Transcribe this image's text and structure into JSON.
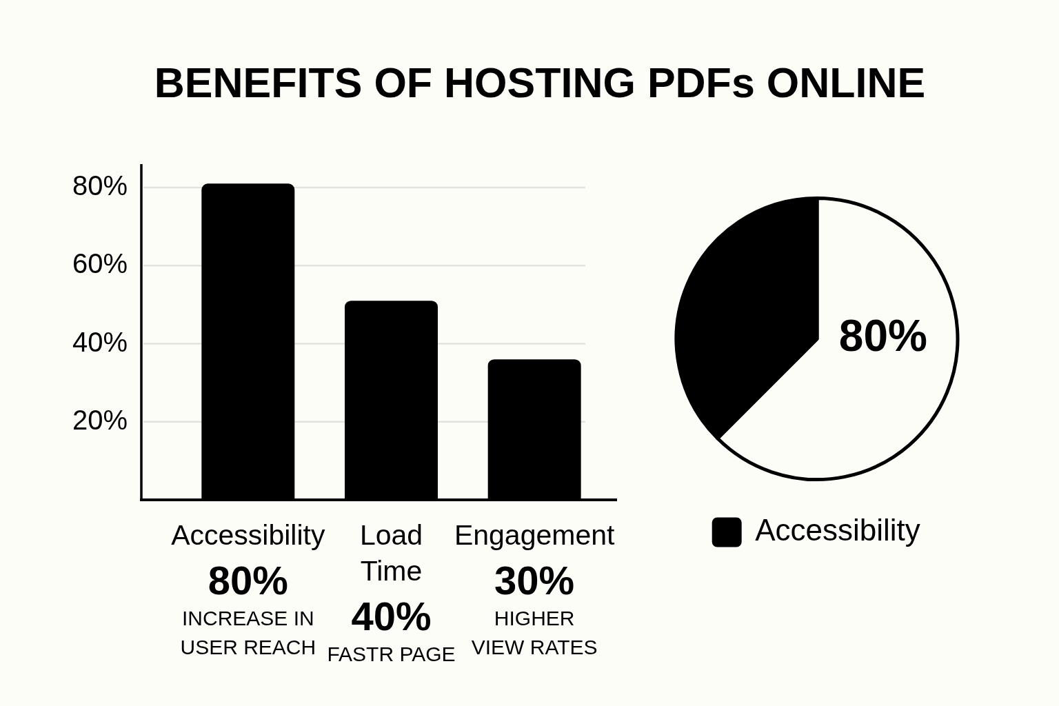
{
  "chart_data": [
    {
      "type": "bar",
      "title": "BENEFITS OF HOSTING PDFs ONLINE",
      "categories": [
        "Accessibility",
        "Load Time",
        "Engagement"
      ],
      "values": [
        81,
        51,
        36
      ],
      "color": "#000000",
      "ylim": [
        0,
        86
      ],
      "yticks": [
        {
          "value": 20,
          "label": "20%"
        },
        {
          "value": 40,
          "label": "40%"
        },
        {
          "value": 60,
          "label": "60%"
        },
        {
          "value": 80,
          "label": "80%"
        }
      ],
      "grid": "y",
      "annotations": [
        "80%",
        "INCREASE IN USER REACH",
        "40%",
        "FASTR PAGE",
        "30%",
        "HIGHER VIEW RATES"
      ]
    },
    {
      "type": "pie",
      "categories": [
        null,
        "Accessibility"
      ],
      "values": [
        62.5,
        37.5
      ],
      "colors": [
        "#fdfdf8",
        "#000000"
      ],
      "legend": "bottom",
      "annotations": [
        "80%"
      ]
    }
  ]
}
